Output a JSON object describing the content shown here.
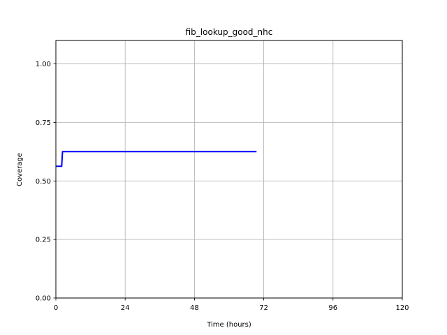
{
  "chart_data": {
    "type": "line",
    "title": "fib_lookup_good_nhc",
    "xlabel": "Time (hours)",
    "ylabel": "Coverage",
    "xlim": [
      0,
      120
    ],
    "ylim": [
      0,
      1.1
    ],
    "x_ticks": [
      0,
      24,
      48,
      72,
      96,
      120
    ],
    "x_tick_labels": [
      "0",
      "24",
      "48",
      "72",
      "96",
      "120"
    ],
    "y_ticks": [
      0,
      0.25,
      0.5,
      0.75,
      1.0
    ],
    "y_tick_labels": [
      "0.00",
      "0.25",
      "0.50",
      "0.75",
      "1.00"
    ],
    "grid": true,
    "series": [
      {
        "color": "#0000ff",
        "x": [
          0,
          2,
          2.3,
          69.5
        ],
        "y": [
          0.5625,
          0.5625,
          0.625,
          0.625
        ]
      }
    ]
  }
}
